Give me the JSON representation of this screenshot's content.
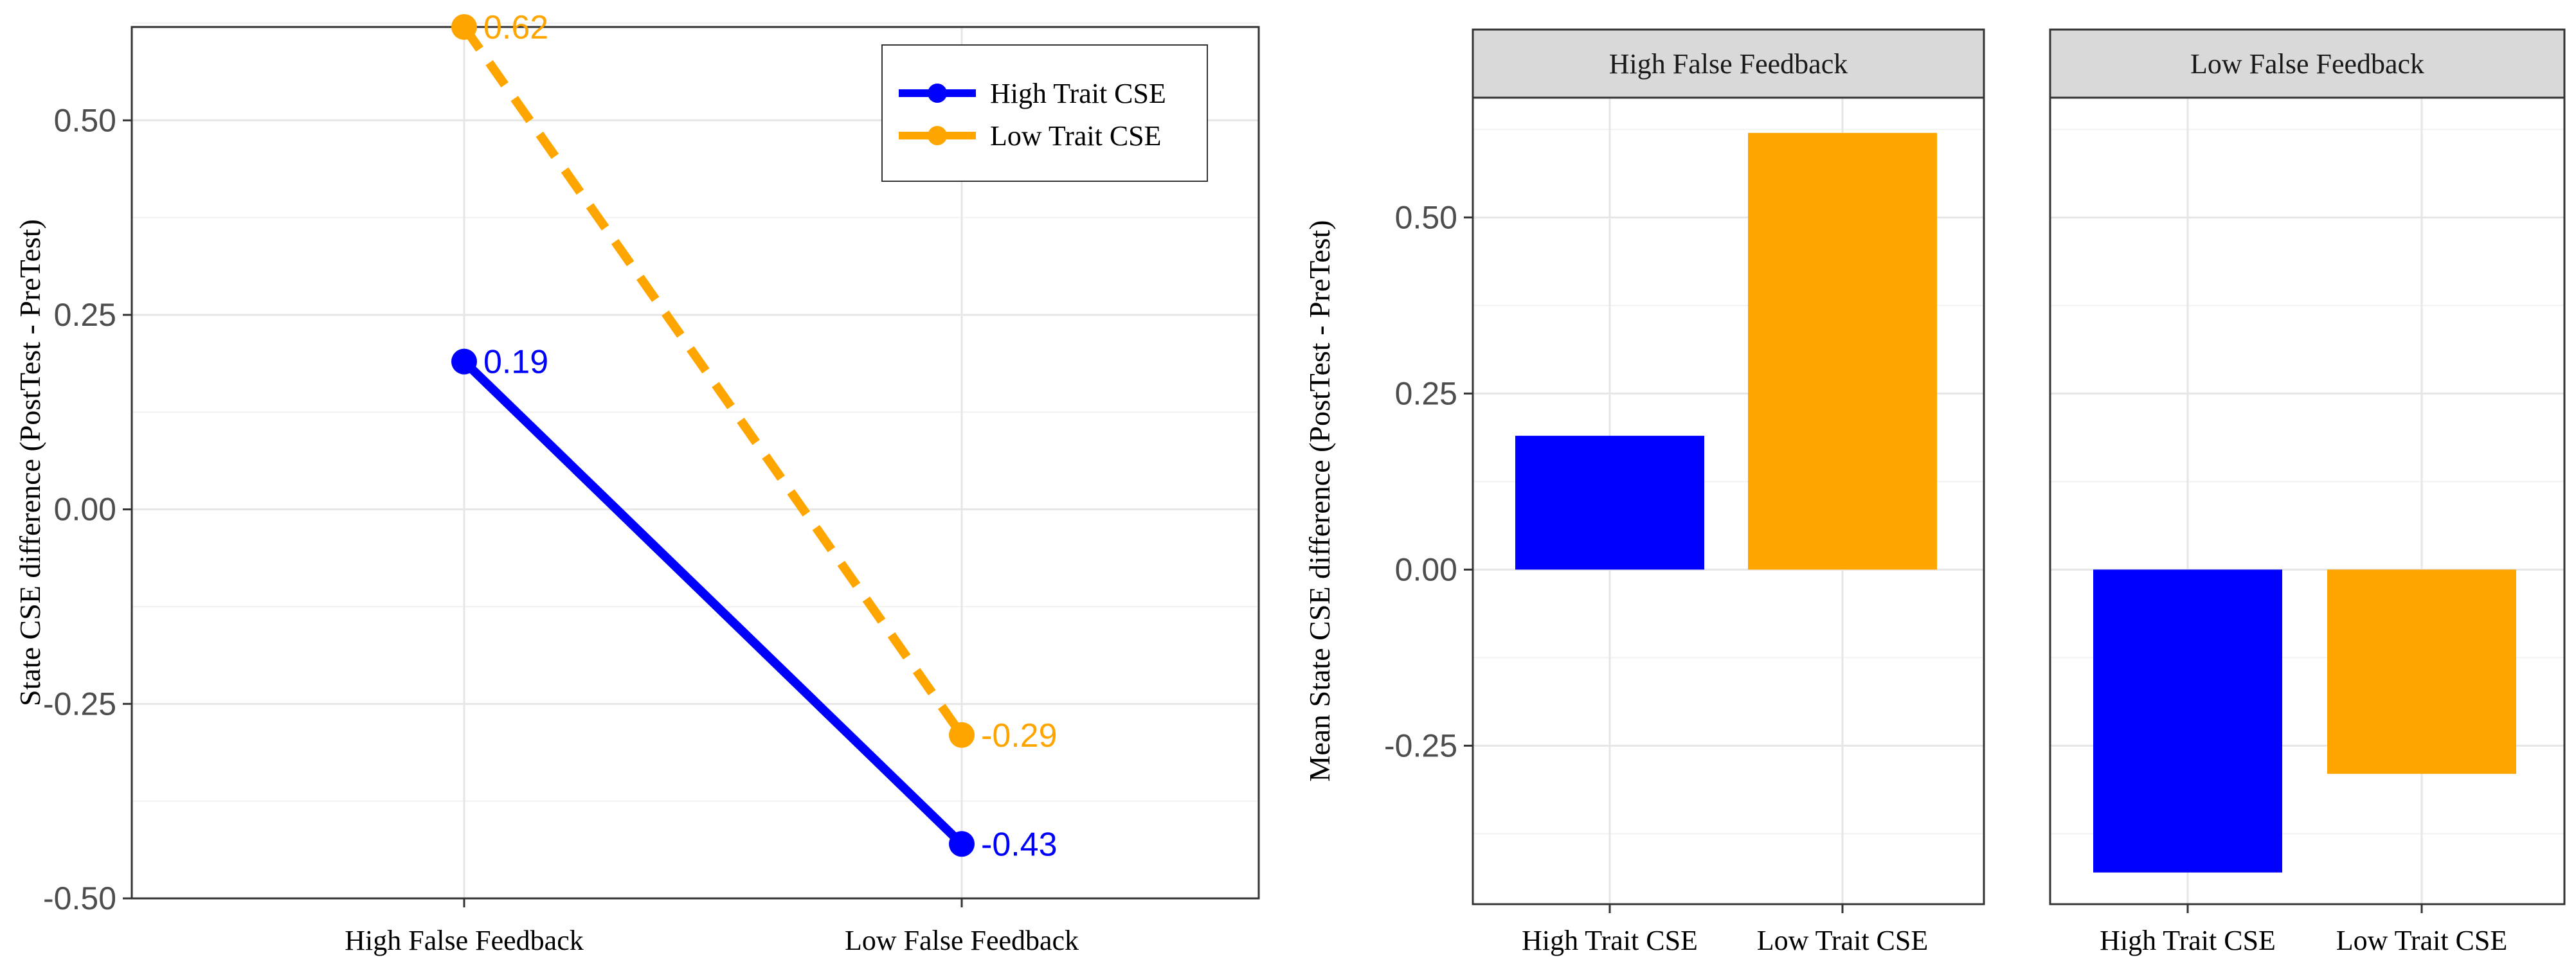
{
  "chart_data": [
    {
      "type": "line",
      "categories": [
        "High False Feedback",
        "Low False Feedback"
      ],
      "ylabel": "State CSE difference (PostTest - PreTest)",
      "ylim": [
        -0.5,
        0.62
      ],
      "yticks": [
        -0.5,
        -0.25,
        0.0,
        0.25,
        0.5
      ],
      "ytick_labels": [
        "-0.50",
        "-0.25",
        "0.00",
        "0.25",
        "0.50"
      ],
      "grid": true,
      "legend_position": "top-right",
      "series": [
        {
          "name": "High Trait CSE",
          "values": [
            0.19,
            -0.43
          ],
          "labels": [
            "0.19",
            "-0.43"
          ],
          "color": "#0000ff",
          "style": "solid"
        },
        {
          "name": "Low Trait CSE",
          "values": [
            0.62,
            -0.29
          ],
          "labels": [
            "0.62",
            "-0.29"
          ],
          "color": "#ffa500",
          "style": "dashed"
        }
      ]
    },
    {
      "type": "bar",
      "ylabel": "Mean State CSE difference (PostTest - PreTest)",
      "ylim": [
        -0.43,
        0.62
      ],
      "yticks": [
        -0.25,
        0.0,
        0.25,
        0.5
      ],
      "ytick_labels": [
        "-0.25",
        "0.00",
        "0.25",
        "0.50"
      ],
      "grid": true,
      "facets": [
        {
          "title": "High False Feedback",
          "categories": [
            "High Trait CSE",
            "Low Trait CSE"
          ],
          "values": [
            0.19,
            0.62
          ]
        },
        {
          "title": "Low False Feedback",
          "categories": [
            "High Trait CSE",
            "Low Trait CSE"
          ],
          "values": [
            -0.43,
            -0.29
          ]
        }
      ],
      "colors": [
        "#0000ff",
        "#ffa500"
      ]
    }
  ]
}
